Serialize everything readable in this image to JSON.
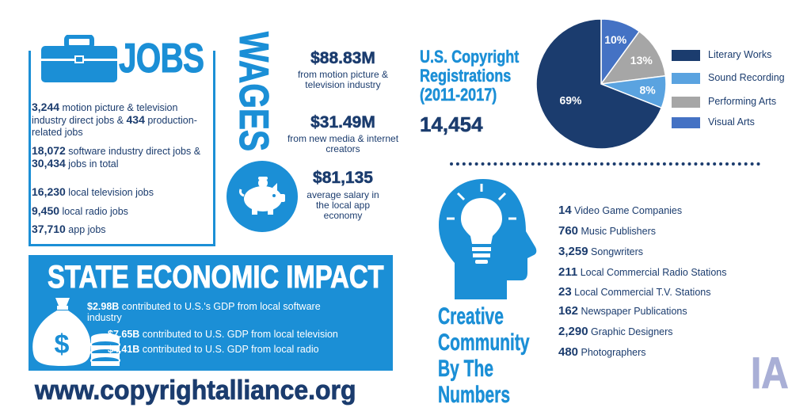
{
  "jobs": {
    "title": "JOBS",
    "items": [
      {
        "num1": "3,244",
        "text1": " motion picture & television industry direct jobs & ",
        "num2": "434",
        "text2": " production-related jobs"
      },
      {
        "num1": "18,072",
        "text1": " software industry direct jobs & ",
        "num2": "30,434",
        "text2": " jobs in total"
      },
      {
        "num1": "16,230",
        "text1": " local television jobs",
        "num2": "",
        "text2": ""
      },
      {
        "num1": "9,450",
        "text1": " local radio jobs",
        "num2": "",
        "text2": ""
      },
      {
        "num1": "37,710",
        "text1": " app jobs",
        "num2": "",
        "text2": ""
      }
    ]
  },
  "wages": {
    "title": "WAGES",
    "items": [
      {
        "value": "$88.83M",
        "desc": "from motion picture & television industry"
      },
      {
        "value": "$31.49M",
        "desc": "from new media & internet creators"
      },
      {
        "value": "$81,135",
        "desc": "average salary in the local app economy"
      }
    ]
  },
  "copyright": {
    "title": "U.S. Copyright Registrations (2011-2017)",
    "total": "14,454",
    "legend": [
      {
        "label": "Literary Works",
        "color": "#1b3c6e",
        "pct": 69,
        "pct_label": "69%"
      },
      {
        "label": "Sound Recording",
        "color": "#5aa3e0",
        "pct": 8,
        "pct_label": "8%"
      },
      {
        "label": "Performing Arts",
        "color": "#a6a6a6",
        "pct": 13,
        "pct_label": "13%"
      },
      {
        "label": "Visual Arts",
        "color": "#4472c4",
        "pct": 10,
        "pct_label": "10%"
      }
    ]
  },
  "creative": {
    "title": "Creative Community By The Numbers",
    "items": [
      {
        "num": "14",
        "label": "Video Game Companies"
      },
      {
        "num": "760",
        "label": "Music Publishers"
      },
      {
        "num": "3,259",
        "label": "Songwriters"
      },
      {
        "num": "211",
        "label": "Local Commercial Radio Stations"
      },
      {
        "num": "23",
        "label": "Local Commercial T.V. Stations"
      },
      {
        "num": "162",
        "label": "Newspaper Publications"
      },
      {
        "num": "2,290",
        "label": "Graphic Designers"
      },
      {
        "num": "480",
        "label": "Photographers"
      }
    ]
  },
  "state": {
    "title": "STATE ECONOMIC IMPACT",
    "items": [
      {
        "value": "$2.98B",
        "text": " contributed to U.S.'s GDP from local software industry"
      },
      {
        "value": "$7.65B",
        "text": " contributed to U.S. GDP from local television"
      },
      {
        "value": "$4.41B",
        "text": " contributed to U.S. GDP from local radio"
      }
    ]
  },
  "footer": {
    "url": "www.copyrightalliance.org",
    "state_abbr": "IA"
  },
  "icons": [
    "briefcase-icon",
    "piggy-bank-icon",
    "money-bag-icon",
    "coins-icon",
    "head-lightbulb-icon"
  ]
}
